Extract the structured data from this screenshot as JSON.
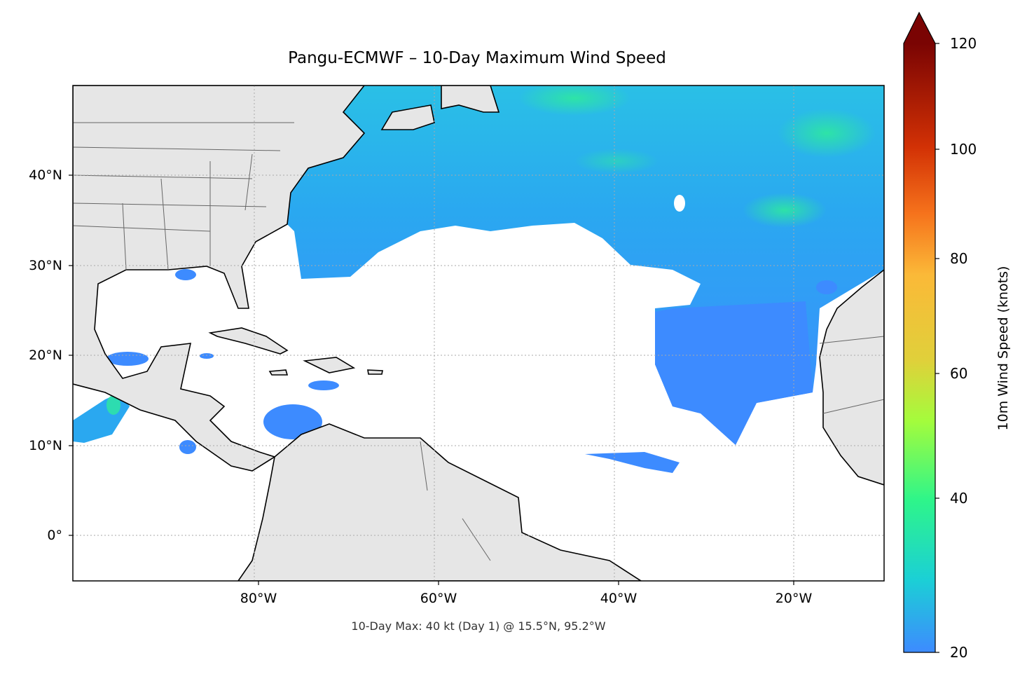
{
  "title": "Pangu-ECMWF – 10-Day Maximum Wind Speed",
  "subtitle": "10-Day Max: 40 kt (Day 1) @ 15.5°N, 95.2°W",
  "map": {
    "projection": "PlateCarree",
    "extent": {
      "lon": [
        -100,
        -10
      ],
      "lat": [
        -5,
        50
      ]
    },
    "x_ticks": [
      "80°W",
      "60°W",
      "40°W",
      "20°W"
    ],
    "y_ticks": [
      "40°N",
      "30°N",
      "20°N",
      "10°N",
      "0°"
    ],
    "gridlines": "dotted",
    "land_color": "#e6e6e6",
    "masked_below_knots": 20
  },
  "colorbar": {
    "label": "10m Wind Speed (knots)",
    "ticks": [
      "20",
      "40",
      "60",
      "80",
      "100",
      "120"
    ],
    "range": [
      20,
      120
    ],
    "extend": "max",
    "colormap": "turbo",
    "colors": [
      "#3d8bff",
      "#1bd0d5",
      "#2ef58a",
      "#a4fc3c",
      "#e0d03a",
      "#fb8c22",
      "#d23105",
      "#7a0403"
    ]
  }
}
